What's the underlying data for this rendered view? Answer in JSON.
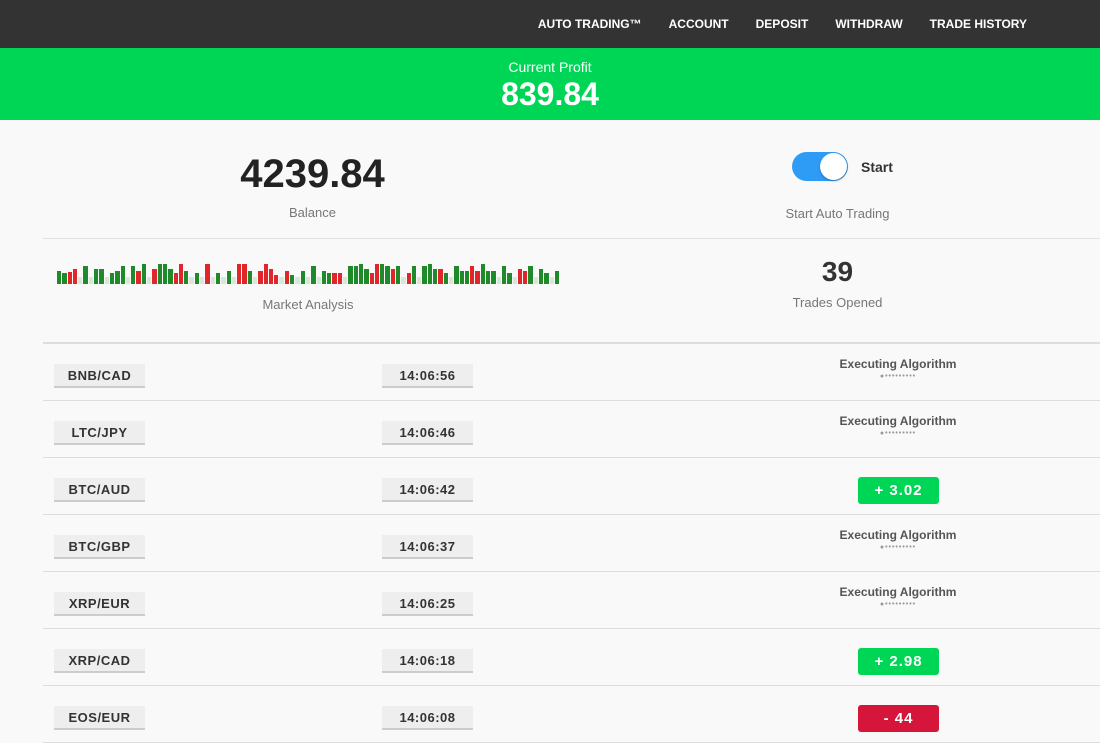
{
  "nav": [
    "AUTO TRADING™",
    "ACCOUNT",
    "DEPOSIT",
    "WITHDRAW",
    "TRADE HISTORY"
  ],
  "banner": {
    "label": "Current Profit",
    "value": "839.84",
    "color": "#00d655"
  },
  "balance": {
    "value": "4239.84",
    "label": "Balance"
  },
  "auto": {
    "toggle_label": "Start",
    "caption": "Start Auto Trading",
    "enabled": true
  },
  "market": {
    "label": "Market Analysis",
    "bars": [
      [
        0.6,
        "g"
      ],
      [
        0.5,
        "g"
      ],
      [
        0.55,
        "r"
      ],
      [
        0.7,
        "r"
      ],
      [
        0.3,
        "l"
      ],
      [
        0.8,
        "g"
      ],
      [
        0.3,
        "l"
      ],
      [
        0.7,
        "g"
      ],
      [
        0.7,
        "g"
      ],
      [
        0.3,
        "l"
      ],
      [
        0.5,
        "g"
      ],
      [
        0.6,
        "g"
      ],
      [
        0.8,
        "g"
      ],
      [
        0.3,
        "l"
      ],
      [
        0.8,
        "g"
      ],
      [
        0.6,
        "r"
      ],
      [
        0.9,
        "g"
      ],
      [
        0.3,
        "l"
      ],
      [
        0.7,
        "r"
      ],
      [
        0.9,
        "g"
      ],
      [
        0.9,
        "g"
      ],
      [
        0.7,
        "g"
      ],
      [
        0.5,
        "r"
      ],
      [
        0.9,
        "r"
      ],
      [
        0.6,
        "g"
      ],
      [
        0.3,
        "l"
      ],
      [
        0.5,
        "g"
      ],
      [
        0.3,
        "l"
      ],
      [
        0.9,
        "r"
      ],
      [
        0.3,
        "l"
      ],
      [
        0.5,
        "g"
      ],
      [
        0.3,
        "l"
      ],
      [
        0.6,
        "g"
      ],
      [
        0.3,
        "l"
      ],
      [
        0.9,
        "r"
      ],
      [
        0.9,
        "r"
      ],
      [
        0.6,
        "g"
      ],
      [
        0.3,
        "l"
      ],
      [
        0.6,
        "r"
      ],
      [
        0.9,
        "r"
      ],
      [
        0.7,
        "r"
      ],
      [
        0.4,
        "r"
      ],
      [
        0.3,
        "l"
      ],
      [
        0.6,
        "r"
      ],
      [
        0.4,
        "g"
      ],
      [
        0.3,
        "l"
      ],
      [
        0.6,
        "g"
      ],
      [
        0.3,
        "l"
      ],
      [
        0.8,
        "g"
      ],
      [
        0.3,
        "l"
      ],
      [
        0.6,
        "g"
      ],
      [
        0.5,
        "g"
      ],
      [
        0.5,
        "r"
      ],
      [
        0.5,
        "r"
      ],
      [
        0.3,
        "l"
      ],
      [
        0.8,
        "g"
      ],
      [
        0.8,
        "g"
      ],
      [
        0.9,
        "g"
      ],
      [
        0.7,
        "g"
      ],
      [
        0.5,
        "r"
      ],
      [
        0.9,
        "r"
      ],
      [
        0.9,
        "g"
      ],
      [
        0.8,
        "g"
      ],
      [
        0.7,
        "r"
      ],
      [
        0.8,
        "g"
      ],
      [
        0.3,
        "l"
      ],
      [
        0.5,
        "r"
      ],
      [
        0.8,
        "g"
      ],
      [
        0.3,
        "l"
      ],
      [
        0.8,
        "g"
      ],
      [
        0.9,
        "g"
      ],
      [
        0.7,
        "g"
      ],
      [
        0.7,
        "r"
      ],
      [
        0.5,
        "g"
      ],
      [
        0.3,
        "l"
      ],
      [
        0.8,
        "g"
      ],
      [
        0.6,
        "g"
      ],
      [
        0.6,
        "g"
      ],
      [
        0.8,
        "r"
      ],
      [
        0.6,
        "r"
      ],
      [
        0.9,
        "g"
      ],
      [
        0.6,
        "g"
      ],
      [
        0.6,
        "g"
      ],
      [
        0.3,
        "l"
      ],
      [
        0.8,
        "g"
      ],
      [
        0.5,
        "g"
      ],
      [
        0.3,
        "l"
      ],
      [
        0.7,
        "r"
      ],
      [
        0.6,
        "r"
      ],
      [
        0.8,
        "g"
      ],
      [
        0.3,
        "l"
      ],
      [
        0.7,
        "g"
      ],
      [
        0.5,
        "g"
      ],
      [
        0.3,
        "l"
      ],
      [
        0.6,
        "g"
      ]
    ]
  },
  "trades_opened": {
    "value": "39",
    "label": "Trades Opened"
  },
  "trades": [
    {
      "pair": "BNB/CAD",
      "time": "14:06:56",
      "status": "Executing Algorithm"
    },
    {
      "pair": "LTC/JPY",
      "time": "14:06:46",
      "status": "Executing Algorithm"
    },
    {
      "pair": "BTC/AUD",
      "time": "14:06:42",
      "result": "+  3.02",
      "positive": true
    },
    {
      "pair": "BTC/GBP",
      "time": "14:06:37",
      "status": "Executing Algorithm"
    },
    {
      "pair": "XRP/EUR",
      "time": "14:06:25",
      "status": "Executing Algorithm"
    },
    {
      "pair": "XRP/CAD",
      "time": "14:06:18",
      "result": "+  2.98",
      "positive": true
    },
    {
      "pair": "EOS/EUR",
      "time": "14:06:08",
      "result": "-   44",
      "positive": false
    }
  ],
  "colors": {
    "positive": "#00d655",
    "negative": "#d6153a",
    "toggle": "#2e9cf4",
    "nav": "#333333"
  }
}
